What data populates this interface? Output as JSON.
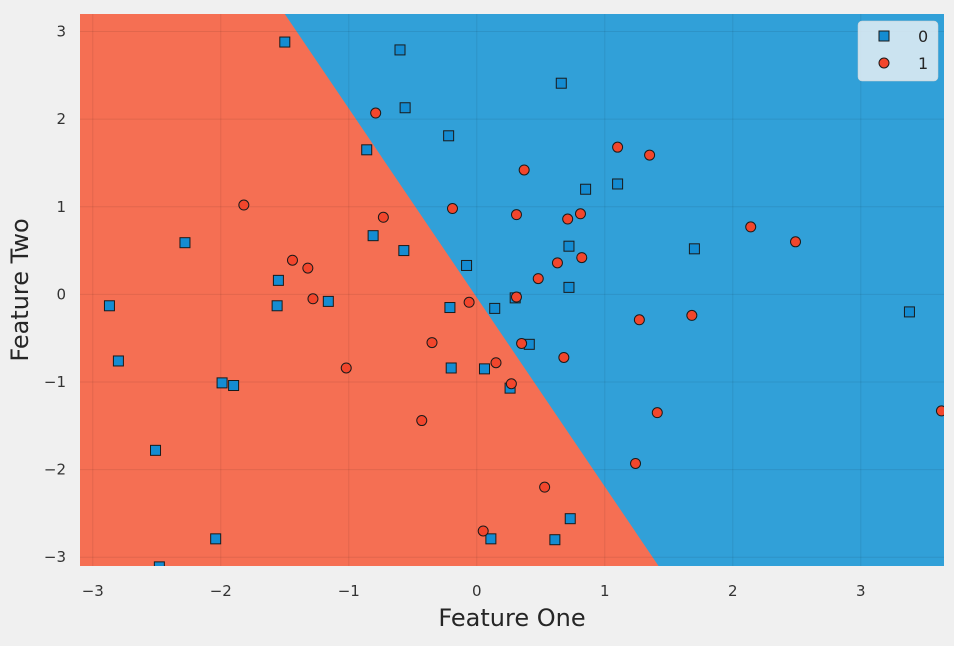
{
  "chart_data": {
    "type": "scatter",
    "title": "",
    "xlabel": "Feature One",
    "ylabel": "Feature Two",
    "xlim": [
      -3.1,
      3.65
    ],
    "ylim": [
      -3.1,
      3.2
    ],
    "xticks": [
      -3,
      -2,
      -1,
      0,
      1,
      2,
      3
    ],
    "yticks": [
      -3,
      -2,
      -1,
      0,
      1,
      2,
      3
    ],
    "xtick_labels": [
      "−3",
      "−2",
      "−1",
      "0",
      "1",
      "2",
      "3"
    ],
    "ytick_labels": [
      "−3",
      "−2",
      "−1",
      "0",
      "1",
      "2",
      "3"
    ],
    "grid": true,
    "legend_position": "top-right",
    "decision_boundary": {
      "class_left": "1",
      "class_right": "0",
      "line": [
        [
          -1.5,
          3.2
        ],
        [
          1.42,
          -3.1
        ]
      ]
    },
    "colors": {
      "class_0": "#31a0d8",
      "class_1": "#f56f53",
      "marker_0": "#148cd2",
      "marker_1": "#f2462c",
      "marker_edge": "#1a1a1a",
      "background": "#f0f0f0"
    },
    "series": [
      {
        "name": "0",
        "marker": "square",
        "points": [
          [
            -1.5,
            2.88
          ],
          [
            -0.6,
            2.79
          ],
          [
            0.66,
            2.41
          ],
          [
            -0.56,
            2.13
          ],
          [
            -0.22,
            1.81
          ],
          [
            -0.86,
            1.65
          ],
          [
            1.1,
            1.26
          ],
          [
            0.85,
            1.2
          ],
          [
            -2.28,
            0.59
          ],
          [
            -0.81,
            0.67
          ],
          [
            0.72,
            0.55
          ],
          [
            1.7,
            0.52
          ],
          [
            -1.55,
            0.16
          ],
          [
            -0.57,
            0.5
          ],
          [
            -0.08,
            0.33
          ],
          [
            0.72,
            0.08
          ],
          [
            -2.87,
            -0.13
          ],
          [
            -1.56,
            -0.13
          ],
          [
            -1.16,
            -0.08
          ],
          [
            -0.21,
            -0.15
          ],
          [
            0.14,
            -0.16
          ],
          [
            0.3,
            -0.04
          ],
          [
            3.38,
            -0.2
          ],
          [
            0.41,
            -0.57
          ],
          [
            -2.8,
            -0.76
          ],
          [
            -0.2,
            -0.84
          ],
          [
            0.06,
            -0.85
          ],
          [
            -1.99,
            -1.01
          ],
          [
            -1.9,
            -1.04
          ],
          [
            0.26,
            -1.07
          ],
          [
            -2.51,
            -1.78
          ],
          [
            0.73,
            -2.56
          ],
          [
            -2.04,
            -2.79
          ],
          [
            0.11,
            -2.79
          ],
          [
            0.61,
            -2.8
          ],
          [
            -2.48,
            -3.11
          ]
        ]
      },
      {
        "name": "1",
        "marker": "circle",
        "points": [
          [
            -0.79,
            2.07
          ],
          [
            1.1,
            1.68
          ],
          [
            1.35,
            1.59
          ],
          [
            0.37,
            1.42
          ],
          [
            -1.82,
            1.02
          ],
          [
            -0.19,
            0.98
          ],
          [
            -0.73,
            0.88
          ],
          [
            0.31,
            0.91
          ],
          [
            0.81,
            0.92
          ],
          [
            0.71,
            0.86
          ],
          [
            2.14,
            0.77
          ],
          [
            2.49,
            0.6
          ],
          [
            -1.44,
            0.39
          ],
          [
            -1.32,
            0.3
          ],
          [
            0.63,
            0.36
          ],
          [
            0.82,
            0.42
          ],
          [
            0.48,
            0.18
          ],
          [
            -1.28,
            -0.05
          ],
          [
            -0.06,
            -0.09
          ],
          [
            0.31,
            -0.03
          ],
          [
            1.27,
            -0.29
          ],
          [
            1.68,
            -0.24
          ],
          [
            -0.35,
            -0.55
          ],
          [
            0.35,
            -0.56
          ],
          [
            0.68,
            -0.72
          ],
          [
            0.15,
            -0.78
          ],
          [
            -1.02,
            -0.84
          ],
          [
            0.27,
            -1.02
          ],
          [
            1.41,
            -1.35
          ],
          [
            -0.43,
            -1.44
          ],
          [
            3.63,
            -1.33
          ],
          [
            1.24,
            -1.93
          ],
          [
            0.53,
            -2.2
          ],
          [
            0.05,
            -2.7
          ]
        ]
      }
    ]
  }
}
